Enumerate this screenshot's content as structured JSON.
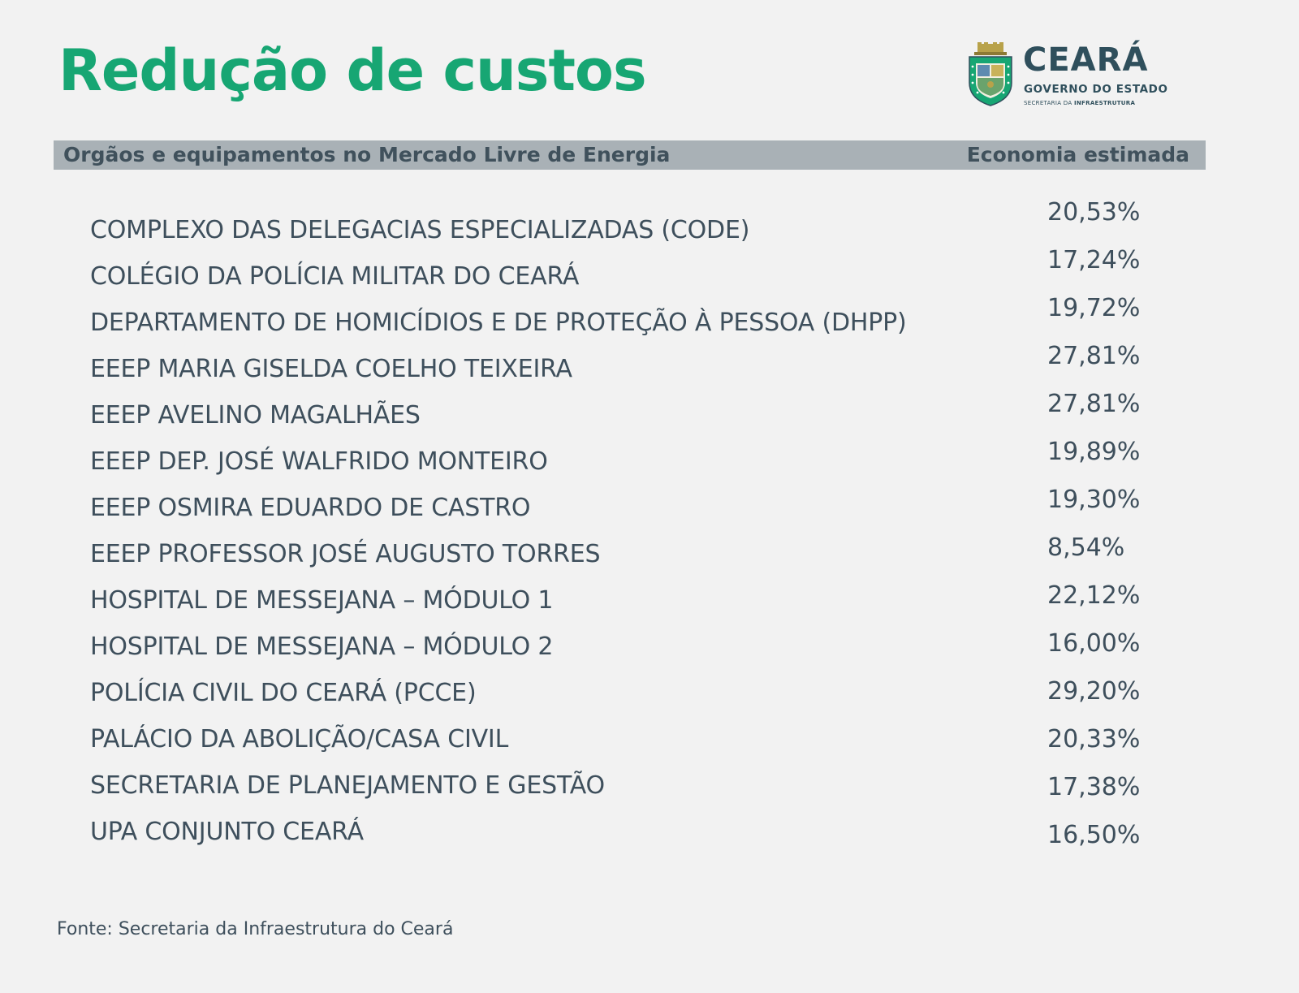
{
  "title": "Redução de custos",
  "logo": {
    "brand": "CEARÁ",
    "subtitle": "GOVERNO DO ESTADO",
    "department_prefix": "SECRETARIA DA ",
    "department_bold": "INFRAESTRUTURA",
    "crest_icon": "state-coat-of-arms-icon",
    "colors": {
      "green": "#17a673",
      "dark": "#2f4f5c",
      "gold": "#b8a24a"
    }
  },
  "header": {
    "left": "Orgãos e equipamentos no Mercado Livre de Energia",
    "right": "Economia estimada"
  },
  "rows": [
    {
      "name": "COMPLEXO DAS DELEGACIAS ESPECIALIZADAS (CODE)",
      "value": "20,53%"
    },
    {
      "name": "COLÉGIO DA POLÍCIA MILITAR DO CEARÁ",
      "value": "17,24%"
    },
    {
      "name": "DEPARTAMENTO DE HOMICÍDIOS E DE PROTEÇÃO À PESSOA (DHPP)",
      "value": "19,72%"
    },
    {
      "name": "EEEP MARIA GISELDA COELHO TEIXEIRA",
      "value": "27,81%"
    },
    {
      "name": "EEEP AVELINO MAGALHÃES",
      "value": "27,81%"
    },
    {
      "name": "EEEP DEP. JOSÉ WALFRIDO MONTEIRO",
      "value": "19,89%"
    },
    {
      "name": "EEEP OSMIRA EDUARDO DE CASTRO",
      "value": "19,30%"
    },
    {
      "name": "EEEP PROFESSOR JOSÉ AUGUSTO TORRES",
      "value": "8,54%"
    },
    {
      "name": "HOSPITAL DE MESSEJANA  – MÓDULO 1",
      "value": "22,12%"
    },
    {
      "name": "HOSPITAL DE MESSEJANA – MÓDULO 2",
      "value": "16,00%"
    },
    {
      "name": "POLÍCIA CIVIL DO CEARÁ (PCCE)",
      "value": "29,20%"
    },
    {
      "name": "PALÁCIO DA ABOLIÇÃO/CASA CIVIL",
      "value": "20,33%"
    },
    {
      "name": "SECRETARIA DE PLANEJAMENTO E GESTÃO",
      "value": "17,38%"
    },
    {
      "name": "UPA CONJUNTO CEARÁ",
      "value": "16,50%"
    }
  ],
  "source": "Fonte: Secretaria da Infraestrutura do Ceará",
  "colors": {
    "title": "#17a673",
    "text": "#3e4f5c",
    "header_bar": "#a9b1b6",
    "background": "#f2f2f2"
  }
}
